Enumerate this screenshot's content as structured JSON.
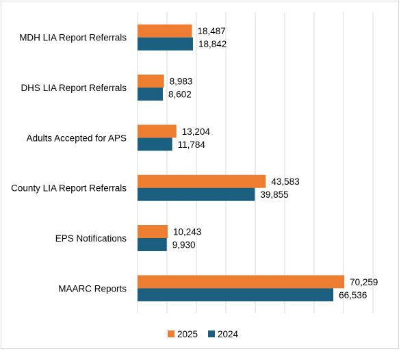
{
  "chart_data": {
    "type": "bar",
    "orientation": "horizontal",
    "categories": [
      "MDH LIA Report Referrals",
      "DHS LIA Report Referrals",
      "Adults Accepted for APS",
      "County LIA Report Referrals",
      "EPS Notifications",
      "MAARC Reports"
    ],
    "series": [
      {
        "name": "2025",
        "color": "#ED7D31",
        "values": [
          18487,
          8983,
          13204,
          43583,
          10243,
          70259
        ],
        "labels": [
          "18,487",
          "8,983",
          "13,204",
          "43,583",
          "10,243",
          "70,259"
        ]
      },
      {
        "name": "2024",
        "color": "#1B5F80",
        "values": [
          18842,
          8602,
          11784,
          39855,
          9930,
          66536
        ],
        "labels": [
          "18,842",
          "8,602",
          "11,784",
          "39,855",
          "9,930",
          "66,536"
        ]
      }
    ],
    "xlim": [
      0,
      80000
    ],
    "grid": true,
    "gridline_color": "#d9d9d9",
    "legend": "bottom",
    "title": "",
    "xlabel": "",
    "ylabel": ""
  }
}
